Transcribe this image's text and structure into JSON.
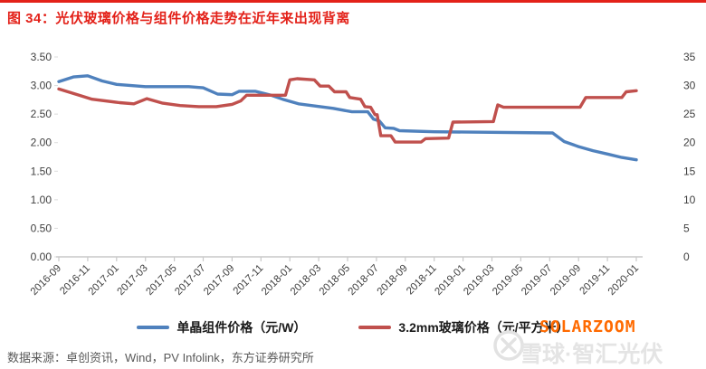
{
  "title": "图 34：光伏玻璃价格与组件价格走势在近年来出现背离",
  "source_note": "数据来源：卓创资讯，Wind，PV Infolink，东方证券研究所",
  "watermark": {
    "gray_text": "雪球·智汇光伏",
    "orange_text": "SOLARZOOM",
    "logo": "xueqiu-circle-x"
  },
  "colors": {
    "accent_red": "#e32119",
    "series_module_blue": "#4f81bd",
    "series_glass_red": "#c0504d",
    "axis_line_gray": "#c9c9c9",
    "axis_text": "#3f3f3f",
    "source_text": "#595959",
    "watermark_orange": "#ff6a00",
    "watermark_gray": "#e4e4e4"
  },
  "chart_data": {
    "type": "line",
    "title": "光伏玻璃价格与组件价格走势",
    "x_months_total": 41,
    "x_first_month": "2016-09",
    "x_last_month": "2020-01",
    "x_labels": [
      "2016-09",
      "2016-11",
      "2017-01",
      "2017-03",
      "2017-05",
      "2017-07",
      "2017-09",
      "2017-11",
      "2018-01",
      "2018-03",
      "2018-05",
      "2018-07",
      "2018-09",
      "2018-11",
      "2019-01",
      "2019-03",
      "2019-05",
      "2019-07",
      "2019-09",
      "2019-11",
      "2020-01"
    ],
    "left_axis": {
      "min": 0,
      "max": 3.5,
      "ticks": [
        "3.50",
        "3.00",
        "2.50",
        "2.00",
        "1.50",
        "1.00",
        "0.50",
        "0.00"
      ]
    },
    "right_axis": {
      "min": 0,
      "max": 35,
      "ticks": [
        "35",
        "30",
        "25",
        "20",
        "15",
        "10",
        "5",
        "0"
      ]
    },
    "grid": "off",
    "legend_position": "bottom",
    "series": [
      {
        "name": "单晶组件价格（元/W）",
        "axis": "left",
        "unit": "元/W",
        "color": "#4f81bd",
        "points": [
          [
            0,
            3.07
          ],
          [
            1,
            3.15
          ],
          [
            2,
            3.17
          ],
          [
            3,
            3.08
          ],
          [
            4,
            3.02
          ],
          [
            5,
            3.0
          ],
          [
            6,
            2.98
          ],
          [
            9,
            2.98
          ],
          [
            10,
            2.96
          ],
          [
            11,
            2.85
          ],
          [
            12,
            2.84
          ],
          [
            12.5,
            2.9
          ],
          [
            13.6,
            2.9
          ],
          [
            14.7,
            2.83
          ],
          [
            15.5,
            2.76
          ],
          [
            16.6,
            2.68
          ],
          [
            17.8,
            2.64
          ],
          [
            19,
            2.6
          ],
          [
            20.3,
            2.54
          ],
          [
            21.4,
            2.54
          ],
          [
            21.8,
            2.41
          ],
          [
            22.2,
            2.38
          ],
          [
            22.6,
            2.26
          ],
          [
            23.2,
            2.25
          ],
          [
            23.6,
            2.21
          ],
          [
            26,
            2.19
          ],
          [
            34.2,
            2.17
          ],
          [
            35,
            2.02
          ],
          [
            36,
            1.93
          ],
          [
            37,
            1.86
          ],
          [
            38,
            1.8
          ],
          [
            39,
            1.74
          ],
          [
            40,
            1.7
          ]
        ]
      },
      {
        "name": "3.2mm玻璃价格（元/平方米）",
        "axis": "right",
        "unit": "元/平方米",
        "color": "#c0504d",
        "points": [
          [
            0,
            29.4
          ],
          [
            1.4,
            28.3
          ],
          [
            2.3,
            27.6
          ],
          [
            4.2,
            27.0
          ],
          [
            5.2,
            26.8
          ],
          [
            6.1,
            27.7
          ],
          [
            7.2,
            26.9
          ],
          [
            8.4,
            26.5
          ],
          [
            9.7,
            26.3
          ],
          [
            10.9,
            26.3
          ],
          [
            12,
            26.7
          ],
          [
            12.6,
            27.3
          ],
          [
            13,
            28.3
          ],
          [
            15.7,
            28.3
          ],
          [
            16,
            31.0
          ],
          [
            16.5,
            31.2
          ],
          [
            17.7,
            31.0
          ],
          [
            18.1,
            29.9
          ],
          [
            18.7,
            29.9
          ],
          [
            19.1,
            28.9
          ],
          [
            19.9,
            28.9
          ],
          [
            20.15,
            27.9
          ],
          [
            20.9,
            27.6
          ],
          [
            21.2,
            26.3
          ],
          [
            21.6,
            26.2
          ],
          [
            21.9,
            24.9
          ],
          [
            22.05,
            24.9
          ],
          [
            22.3,
            21.2
          ],
          [
            23,
            21.2
          ],
          [
            23.3,
            20.1
          ],
          [
            25.1,
            20.1
          ],
          [
            25.4,
            20.7
          ],
          [
            27,
            20.8
          ],
          [
            27.3,
            23.6
          ],
          [
            30.1,
            23.7
          ],
          [
            30.4,
            26.6
          ],
          [
            30.8,
            26.2
          ],
          [
            36.1,
            26.2
          ],
          [
            36.5,
            27.9
          ],
          [
            39,
            27.9
          ],
          [
            39.3,
            28.9
          ],
          [
            40,
            29.1
          ]
        ]
      }
    ]
  }
}
